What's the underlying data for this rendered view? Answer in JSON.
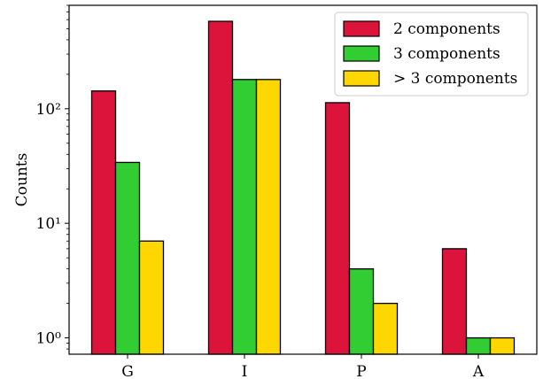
{
  "chart_data": {
    "type": "bar",
    "categories": [
      "G",
      "I",
      "P",
      "A"
    ],
    "series": [
      {
        "name": "2 components",
        "color": "#dc143c",
        "values": [
          143,
          580,
          113,
          6
        ]
      },
      {
        "name": "3 components",
        "color": "#32cd32",
        "values": [
          34,
          180,
          4,
          1
        ]
      },
      {
        "name": "> 3 components",
        "color": "#ffd700",
        "values": [
          7,
          180,
          2,
          1
        ]
      }
    ],
    "ylabel": "Counts",
    "yscale": "log",
    "ylim": [
      0.72,
      800
    ],
    "yticks": [
      {
        "value": 1,
        "label": "10⁰"
      },
      {
        "value": 10,
        "label": "10¹"
      },
      {
        "value": 100,
        "label": "10²"
      }
    ],
    "legend": "top-right",
    "grid": false
  }
}
